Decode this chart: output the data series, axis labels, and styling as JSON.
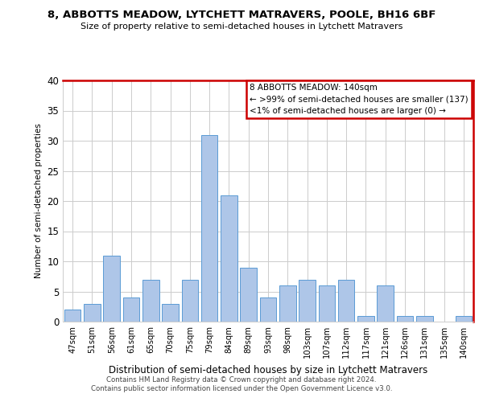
{
  "title": "8, ABBOTTS MEADOW, LYTCHETT MATRAVERS, POOLE, BH16 6BF",
  "subtitle": "Size of property relative to semi-detached houses in Lytchett Matravers",
  "xlabel": "Distribution of semi-detached houses by size in Lytchett Matravers",
  "ylabel": "Number of semi-detached properties",
  "footer1": "Contains HM Land Registry data © Crown copyright and database right 2024.",
  "footer2": "Contains public sector information licensed under the Open Government Licence v3.0.",
  "categories": [
    "47sqm",
    "51sqm",
    "56sqm",
    "61sqm",
    "65sqm",
    "70sqm",
    "75sqm",
    "79sqm",
    "84sqm",
    "89sqm",
    "93sqm",
    "98sqm",
    "103sqm",
    "107sqm",
    "112sqm",
    "117sqm",
    "121sqm",
    "126sqm",
    "131sqm",
    "135sqm",
    "140sqm"
  ],
  "values": [
    2,
    3,
    11,
    4,
    7,
    3,
    7,
    31,
    21,
    9,
    4,
    6,
    7,
    6,
    7,
    1,
    6,
    1,
    1,
    0,
    1
  ],
  "bar_color": "#aec6e8",
  "bar_edge_color": "#5b9bd5",
  "legend_title": "8 ABBOTTS MEADOW: 140sqm",
  "legend_line1": "← >99% of semi-detached houses are smaller (137)",
  "legend_line2": "<1% of semi-detached houses are larger (0) →",
  "legend_box_color": "#cc0000",
  "ylim": [
    0,
    40
  ],
  "yticks": [
    0,
    5,
    10,
    15,
    20,
    25,
    30,
    35,
    40
  ],
  "grid_color": "#cccccc",
  "bg_color": "#ffffff"
}
